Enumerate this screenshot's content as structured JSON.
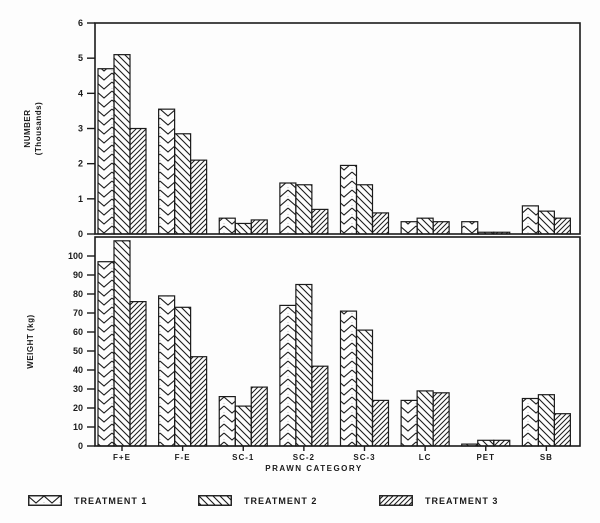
{
  "figure": {
    "background": "#fdfdfd",
    "ink": "#1b1b1b"
  },
  "chart_data": [
    {
      "type": "bar",
      "panel": "top",
      "title": "",
      "ylabel": "NUMBER (Thousands)",
      "ylabel_lines": [
        "NUMBER",
        "(Thousands)"
      ],
      "xlabel": "",
      "ylim": [
        0,
        6
      ],
      "yticks": [
        0,
        1,
        2,
        3,
        4,
        5,
        6
      ],
      "box_top_value": 6,
      "grid": false,
      "legend_position": "bottom",
      "categories": [
        "F+E",
        "F-E",
        "SC-1",
        "SC-2",
        "SC-3",
        "LC",
        "PET",
        "SB"
      ],
      "series": [
        {
          "name": "TREATMENT 1",
          "hatch": "chevron",
          "values": [
            4.7,
            3.55,
            0.45,
            1.45,
            1.95,
            0.35,
            0.35,
            0.8
          ]
        },
        {
          "name": "TREATMENT 2",
          "hatch": "backslash",
          "values": [
            5.1,
            2.85,
            0.3,
            1.4,
            1.4,
            0.45,
            0.05,
            0.65
          ]
        },
        {
          "name": "TREATMENT 3",
          "hatch": "dense-slash",
          "values": [
            3.0,
            2.1,
            0.4,
            0.7,
            0.6,
            0.35,
            0.05,
            0.45
          ]
        }
      ]
    },
    {
      "type": "bar",
      "panel": "bottom",
      "title": "",
      "ylabel": "WEIGHT (kg)",
      "ylabel_lines": [
        "WEIGHT (kg)"
      ],
      "xlabel": "PRAWN CATEGORY",
      "ylim": [
        0,
        110
      ],
      "yticks": [
        0,
        10,
        20,
        30,
        40,
        50,
        60,
        70,
        80,
        90,
        100
      ],
      "box_top_value": 110,
      "grid": false,
      "legend_position": "bottom",
      "categories": [
        "F+E",
        "F-E",
        "SC-1",
        "SC-2",
        "SC-3",
        "LC",
        "PET",
        "SB"
      ],
      "series": [
        {
          "name": "TREATMENT 1",
          "hatch": "chevron",
          "values": [
            97,
            79,
            26,
            74,
            71,
            24,
            1,
            25
          ]
        },
        {
          "name": "TREATMENT 2",
          "hatch": "backslash",
          "values": [
            108,
            73,
            21,
            85,
            61,
            29,
            3,
            27
          ]
        },
        {
          "name": "TREATMENT 3",
          "hatch": "dense-slash",
          "values": [
            76,
            47,
            31,
            42,
            24,
            28,
            3,
            17
          ]
        }
      ]
    }
  ],
  "xaxis": {
    "title": "PRAWN CATEGORY",
    "categories": [
      "F+E",
      "F-E",
      "SC-1",
      "SC-2",
      "SC-3",
      "LC",
      "PET",
      "SB"
    ]
  },
  "legend": {
    "items": [
      {
        "label": "TREATMENT 1",
        "hatch": "chevron"
      },
      {
        "label": "TREATMENT 2",
        "hatch": "backslash"
      },
      {
        "label": "TREATMENT 3",
        "hatch": "dense-slash"
      }
    ]
  }
}
